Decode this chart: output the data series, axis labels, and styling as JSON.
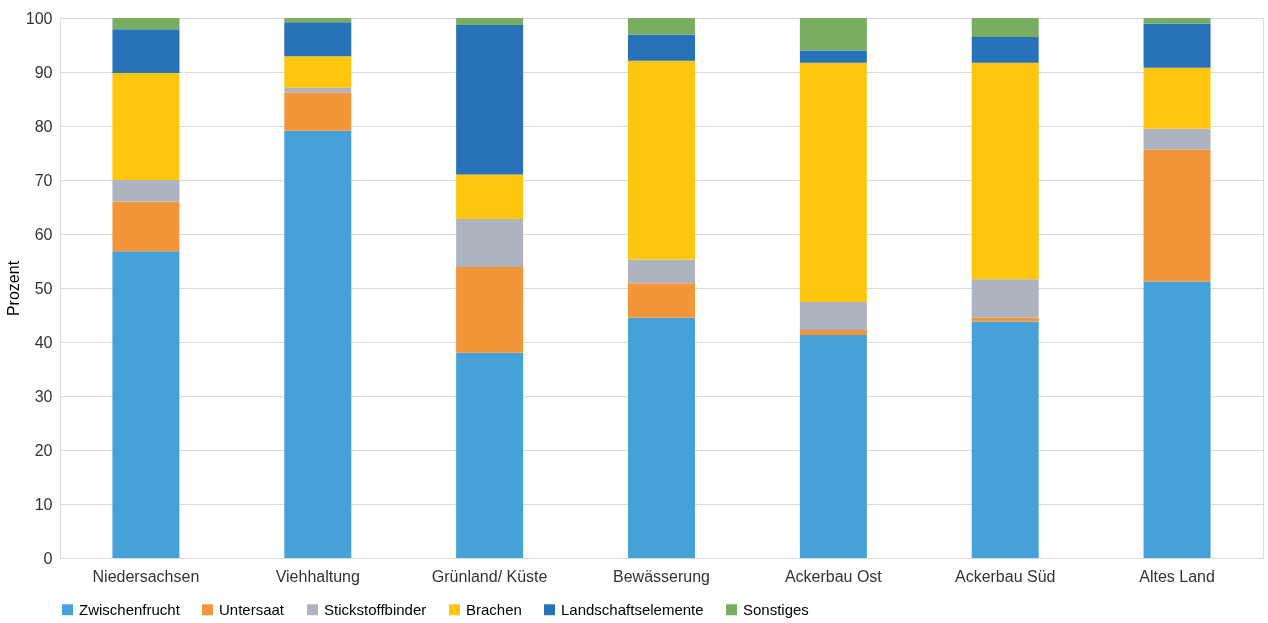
{
  "chart_data": {
    "type": "bar",
    "stacked": true,
    "ylabel": "Prozent",
    "categories": [
      "Niedersachsen",
      "Viehhaltung",
      "Grünland/ Küste",
      "Bewässerung",
      "Ackerbau Ost",
      "Ackerbau Süd",
      "Altes Land"
    ],
    "series": [
      {
        "name": "Zwischenfrucht",
        "color": "#45a1d8",
        "values": [
          56.8,
          79.1,
          38.0,
          44.5,
          41.3,
          43.8,
          51.2
        ]
      },
      {
        "name": "Untersaat",
        "color": "#f39639",
        "values": [
          9.2,
          7.1,
          15.9,
          6.4,
          0.9,
          0.7,
          24.4
        ]
      },
      {
        "name": "Stickstoffbinder",
        "color": "#adb4bf",
        "values": [
          4.0,
          0.9,
          8.9,
          4.4,
          5.2,
          7.1,
          3.9
        ]
      },
      {
        "name": "Brachen",
        "color": "#fec60f",
        "values": [
          19.8,
          5.8,
          8.2,
          36.8,
          44.3,
          40.1,
          11.3
        ]
      },
      {
        "name": "Landschaftselemente",
        "color": "#2872ba",
        "values": [
          8.1,
          6.3,
          27.7,
          4.8,
          2.3,
          4.8,
          8.2
        ]
      },
      {
        "name": "Sonstiges",
        "color": "#78ad62",
        "values": [
          2.1,
          0.8,
          1.3,
          3.1,
          6.0,
          3.5,
          1.0
        ]
      }
    ],
    "ylim": [
      0,
      100
    ],
    "yticks": [
      0,
      10,
      20,
      30,
      40,
      50,
      60,
      70,
      80,
      90,
      100
    ],
    "grid": "y",
    "legend": "bottom"
  }
}
